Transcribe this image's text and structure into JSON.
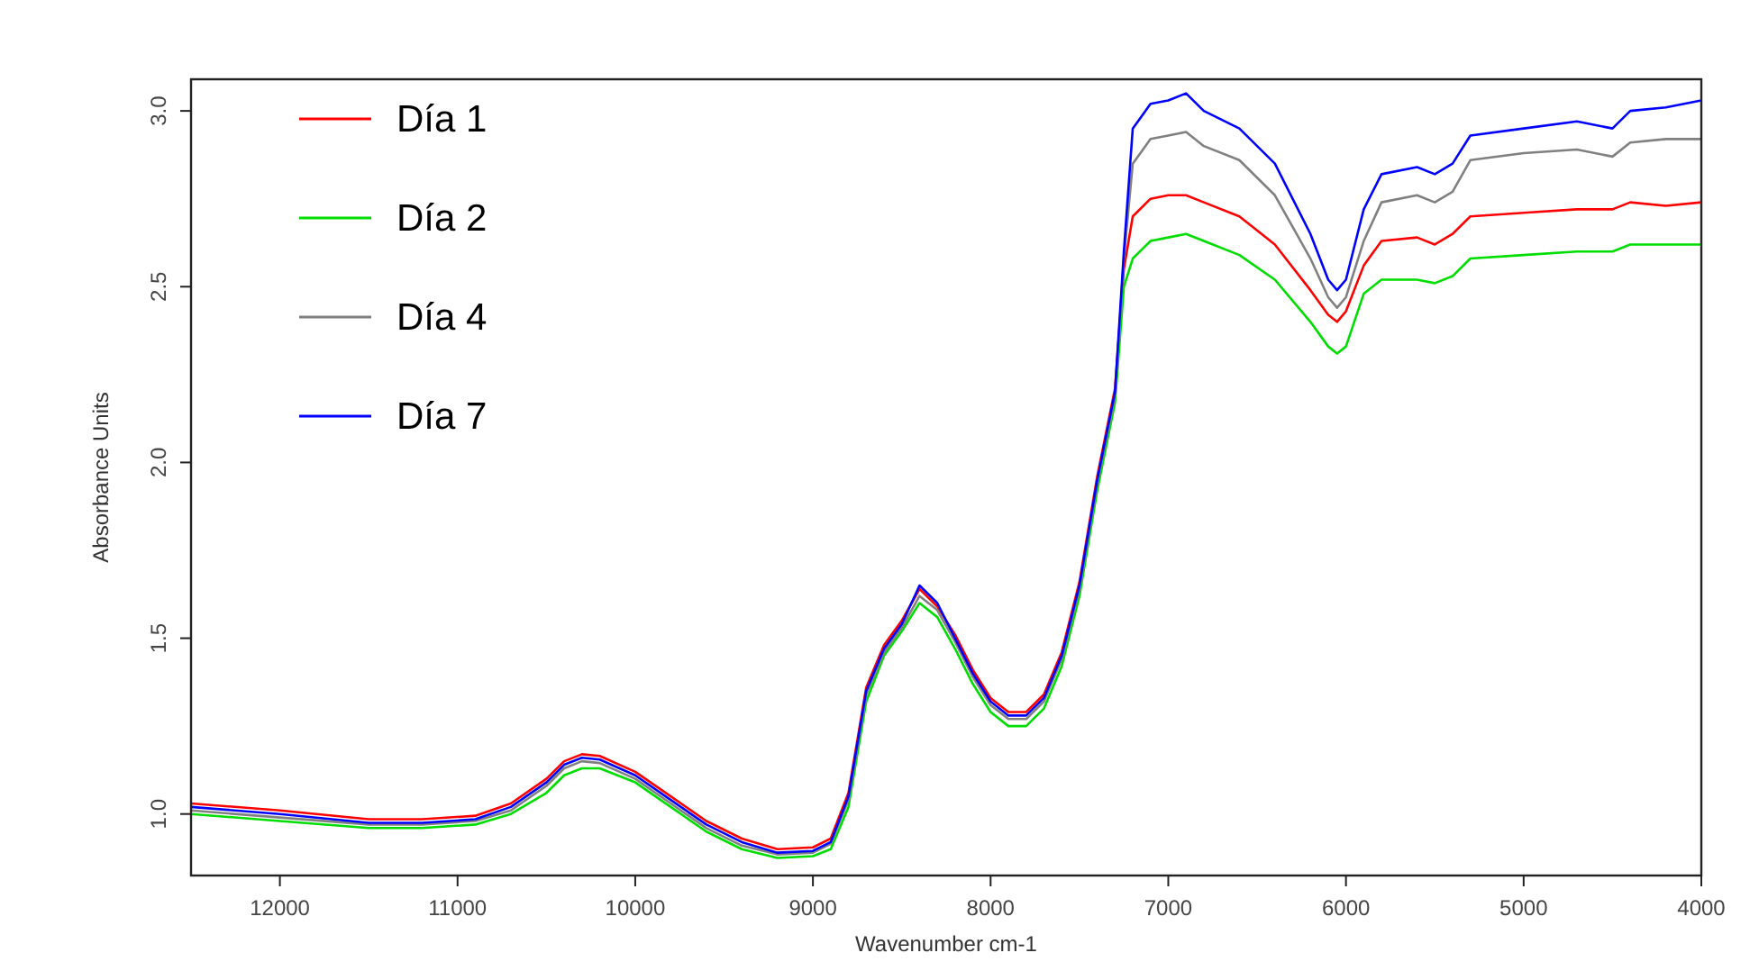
{
  "chart_data": {
    "type": "line",
    "xlabel": "Wavenumber cm-1",
    "ylabel": "Absorbance Units",
    "xlim": [
      12500,
      4000
    ],
    "ylim": [
      0.825,
      3.09
    ],
    "xticks": [
      12000,
      11000,
      10000,
      9000,
      8000,
      7000,
      6000,
      5000,
      4000
    ],
    "yticks": [
      {
        "value": 1,
        "label": "1.0"
      },
      1.5,
      {
        "value": 2,
        "label": "2.0"
      },
      2.5,
      {
        "value": 3,
        "label": "3.0"
      }
    ],
    "grid": false,
    "legend": "top left",
    "marker": "none",
    "line_style": "solid",
    "x": [
      12500,
      12000,
      11500,
      11200,
      10900,
      10700,
      10500,
      10400,
      10300,
      10200,
      10000,
      9800,
      9600,
      9400,
      9200,
      9000,
      8900,
      8800,
      8700,
      8600,
      8500,
      8400,
      8300,
      8200,
      8100,
      8000,
      7900,
      7800,
      7700,
      7600,
      7500,
      7400,
      7300,
      7250,
      7200,
      7100,
      7000,
      6900,
      6800,
      6600,
      6400,
      6200,
      6100,
      6050,
      6000,
      5900,
      5800,
      5600,
      5500,
      5400,
      5300,
      5000,
      4700,
      4500,
      4400,
      4200,
      4000
    ],
    "series": [
      {
        "name": "Día 1",
        "color": "#ff0000",
        "values": [
          1.03,
          1.01,
          0.985,
          0.985,
          0.995,
          1.03,
          1.1,
          1.15,
          1.17,
          1.165,
          1.12,
          1.05,
          0.98,
          0.93,
          0.9,
          0.905,
          0.93,
          1.06,
          1.36,
          1.48,
          1.55,
          1.64,
          1.59,
          1.51,
          1.41,
          1.33,
          1.29,
          1.29,
          1.34,
          1.46,
          1.66,
          1.96,
          2.21,
          2.55,
          2.7,
          2.75,
          2.76,
          2.76,
          2.74,
          2.7,
          2.62,
          2.49,
          2.42,
          2.4,
          2.43,
          2.56,
          2.63,
          2.64,
          2.62,
          2.65,
          2.7,
          2.71,
          2.72,
          2.72,
          2.74,
          2.73,
          2.74
        ]
      },
      {
        "name": "Día 2",
        "color": "#00dd00",
        "values": [
          1.0,
          0.98,
          0.96,
          0.96,
          0.97,
          1.0,
          1.06,
          1.11,
          1.13,
          1.13,
          1.09,
          1.02,
          0.95,
          0.9,
          0.875,
          0.88,
          0.9,
          1.02,
          1.32,
          1.45,
          1.52,
          1.6,
          1.56,
          1.47,
          1.37,
          1.29,
          1.25,
          1.25,
          1.3,
          1.42,
          1.62,
          1.92,
          2.17,
          2.5,
          2.58,
          2.63,
          2.64,
          2.65,
          2.63,
          2.59,
          2.52,
          2.4,
          2.33,
          2.31,
          2.33,
          2.48,
          2.52,
          2.52,
          2.51,
          2.53,
          2.58,
          2.59,
          2.6,
          2.6,
          2.62,
          2.62,
          2.62
        ]
      },
      {
        "name": "Día 4",
        "color": "#808080",
        "values": [
          1.01,
          0.99,
          0.97,
          0.97,
          0.98,
          1.01,
          1.08,
          1.13,
          1.15,
          1.145,
          1.1,
          1.03,
          0.96,
          0.91,
          0.885,
          0.89,
          0.915,
          1.04,
          1.34,
          1.46,
          1.53,
          1.62,
          1.58,
          1.49,
          1.39,
          1.31,
          1.27,
          1.27,
          1.32,
          1.44,
          1.64,
          1.94,
          2.19,
          2.58,
          2.85,
          2.92,
          2.93,
          2.94,
          2.9,
          2.86,
          2.76,
          2.58,
          2.47,
          2.44,
          2.47,
          2.63,
          2.74,
          2.76,
          2.74,
          2.77,
          2.86,
          2.88,
          2.89,
          2.87,
          2.91,
          2.92,
          2.92
        ]
      },
      {
        "name": "Día 7",
        "color": "#0000ff",
        "values": [
          1.02,
          1.0,
          0.975,
          0.975,
          0.985,
          1.02,
          1.09,
          1.14,
          1.16,
          1.155,
          1.11,
          1.04,
          0.97,
          0.92,
          0.89,
          0.895,
          0.92,
          1.05,
          1.35,
          1.47,
          1.54,
          1.65,
          1.6,
          1.5,
          1.4,
          1.32,
          1.28,
          1.28,
          1.33,
          1.45,
          1.65,
          1.95,
          2.2,
          2.6,
          2.95,
          3.02,
          3.03,
          3.05,
          3.0,
          2.95,
          2.85,
          2.65,
          2.52,
          2.49,
          2.52,
          2.72,
          2.82,
          2.84,
          2.82,
          2.85,
          2.93,
          2.95,
          2.97,
          2.95,
          3.0,
          3.01,
          3.03
        ]
      }
    ]
  }
}
